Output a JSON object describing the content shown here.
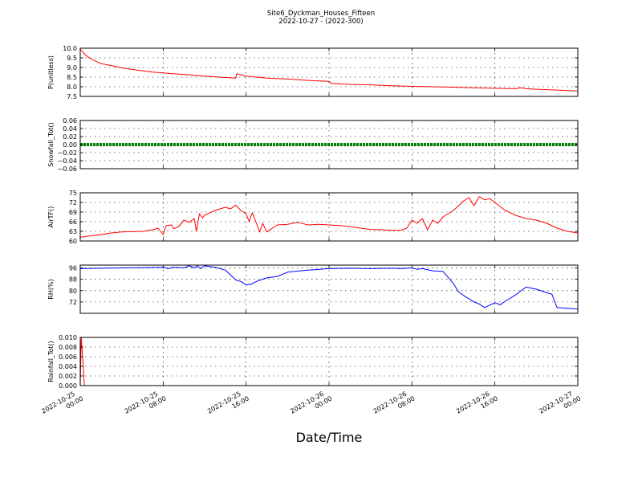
{
  "figure": {
    "title": "Site6_Dyckman_Houses_Fifteen",
    "subtitle": "2022-10-27 - (2022-300)",
    "xlabel": "Date/Time"
  },
  "chart_data": {
    "type": "line",
    "x_ticks": [
      {
        "l1": "2022-10-25",
        "l2": "00:00"
      },
      {
        "l1": "2022-10-25",
        "l2": "08:00"
      },
      {
        "l1": "2022-10-25",
        "l2": "16:00"
      },
      {
        "l1": "2022-10-26",
        "l2": "00:00"
      },
      {
        "l1": "2022-10-26",
        "l2": "08:00"
      },
      {
        "l1": "2022-10-26",
        "l2": "16:00"
      },
      {
        "l1": "2022-10-27",
        "l2": "00:00"
      }
    ],
    "x_range_hours": [
      0,
      48
    ],
    "grid": true,
    "panels": [
      {
        "id": "p",
        "ylabel": "P(unitless)",
        "color": "#ff0000",
        "ylim": [
          7.5,
          10.0
        ],
        "yticks": [
          7.5,
          8.0,
          8.5,
          9.0,
          9.5,
          10.0
        ],
        "ytick_labels": [
          "7.5",
          "8.0",
          "8.5",
          "9.0",
          "9.5",
          "10.0"
        ],
        "x": [
          0,
          0.5,
          1,
          2,
          3,
          4,
          5,
          6,
          7,
          8,
          9,
          10,
          11,
          12,
          14,
          15,
          15.1,
          15.5,
          16,
          17,
          18,
          20,
          22,
          23,
          24,
          24.2,
          26,
          28,
          30,
          32,
          34,
          36,
          38,
          40,
          42,
          42.5,
          43,
          44,
          46,
          47,
          48
        ],
        "y": [
          9.95,
          9.65,
          9.45,
          9.2,
          9.1,
          8.98,
          8.9,
          8.83,
          8.76,
          8.72,
          8.67,
          8.64,
          8.6,
          8.55,
          8.48,
          8.45,
          8.68,
          8.62,
          8.55,
          8.5,
          8.45,
          8.4,
          8.33,
          8.3,
          8.28,
          8.18,
          8.12,
          8.1,
          8.05,
          8.02,
          8.0,
          7.98,
          7.95,
          7.92,
          7.9,
          7.95,
          7.9,
          7.87,
          7.83,
          7.8,
          7.78
        ]
      },
      {
        "id": "snow",
        "ylabel": "Snowfall_Tot()",
        "color": "#008000",
        "ylim": [
          -0.06,
          0.06
        ],
        "yticks": [
          -0.06,
          -0.04,
          -0.02,
          0.0,
          0.02,
          0.04,
          0.06
        ],
        "ytick_labels": [
          "−0.06",
          "−0.04",
          "−0.02",
          "0.00",
          "0.02",
          "0.04",
          "0.06"
        ],
        "x": [
          0,
          48
        ],
        "y": [
          0.0,
          0.0
        ]
      },
      {
        "id": "air",
        "ylabel": "AirTF()",
        "color": "#ff0000",
        "ylim": [
          60,
          75
        ],
        "yticks": [
          60,
          63,
          66,
          69,
          72,
          75
        ],
        "ytick_labels": [
          "60",
          "63",
          "66",
          "69",
          "72",
          "75"
        ],
        "x": [
          0,
          1,
          2,
          3,
          4,
          5,
          6,
          7,
          7.5,
          8,
          8.3,
          8.8,
          9,
          9.5,
          10,
          10.5,
          11,
          11.2,
          11.5,
          11.8,
          12,
          12.5,
          13,
          14,
          14.5,
          15,
          15.5,
          16,
          16.3,
          16.6,
          17,
          17.3,
          17.6,
          18,
          19,
          20,
          21,
          22,
          23,
          24,
          25,
          26,
          27,
          28,
          29,
          30,
          31,
          31.5,
          32,
          32.5,
          33,
          33.5,
          34,
          34.5,
          35,
          36,
          36.5,
          37,
          37.5,
          38,
          38.5,
          39,
          39.5,
          40,
          41,
          42,
          43,
          44,
          45,
          46,
          47,
          48
        ],
        "y": [
          61.2,
          61.6,
          62.0,
          62.5,
          62.8,
          62.9,
          63.0,
          63.5,
          64.0,
          62.0,
          64.8,
          65.0,
          63.8,
          64.5,
          66.5,
          65.8,
          67.0,
          63.0,
          68.5,
          67.2,
          68.0,
          68.8,
          69.5,
          70.5,
          70.0,
          71.2,
          69.5,
          68.5,
          66.0,
          68.8,
          65.5,
          62.8,
          65.5,
          62.8,
          65.0,
          65.2,
          65.8,
          65.0,
          65.2,
          65.0,
          64.8,
          64.5,
          64.0,
          63.6,
          63.5,
          63.3,
          63.4,
          64.0,
          66.5,
          65.5,
          67.0,
          63.5,
          66.5,
          65.5,
          67.5,
          69.5,
          71.0,
          72.5,
          73.5,
          71.0,
          73.8,
          72.8,
          73.2,
          72.0,
          69.5,
          68.0,
          67.0,
          66.5,
          65.5,
          64.0,
          63.0,
          62.5
        ]
      },
      {
        "id": "rh",
        "ylabel": "RH(%)",
        "color": "#0000ff",
        "ylim": [
          64,
          98
        ],
        "yticks": [
          72,
          80,
          88,
          96
        ],
        "ytick_labels": [
          "72",
          "80",
          "88",
          "96"
        ],
        "x": [
          0,
          2,
          4,
          6,
          8,
          8.5,
          9,
          10,
          10.5,
          11,
          11.3,
          11.6,
          12,
          12.5,
          13,
          14,
          15,
          15.5,
          16,
          16.5,
          17,
          18,
          19,
          20,
          22,
          24,
          26,
          28,
          30,
          31,
          32,
          32.5,
          33,
          34,
          35,
          36,
          36.5,
          37,
          38,
          38.5,
          39,
          40,
          40.5,
          41,
          42,
          43,
          44,
          45,
          45.5,
          46,
          47,
          48
        ],
        "y": [
          95.5,
          95.8,
          96.0,
          96.2,
          96.5,
          95.5,
          96.5,
          96.0,
          97.5,
          96.0,
          97.5,
          95.5,
          97.5,
          97.0,
          96.5,
          94.5,
          87.5,
          86.5,
          84.0,
          84.5,
          86.5,
          89.0,
          90.0,
          93.0,
          94.5,
          95.5,
          95.8,
          95.5,
          95.8,
          95.5,
          96.0,
          95.0,
          95.5,
          94.0,
          93.5,
          85.0,
          79.0,
          76.5,
          72.0,
          70.5,
          68.0,
          71.5,
          70.0,
          72.5,
          77.0,
          82.5,
          81.0,
          78.5,
          77.5,
          68.0,
          67.5,
          67.0
        ]
      },
      {
        "id": "rain",
        "ylabel": "Rainfall_Tot()",
        "color": "#ff0000",
        "ylim": [
          0.0,
          0.01
        ],
        "yticks": [
          0.0,
          0.002,
          0.004,
          0.006,
          0.008,
          0.01
        ],
        "ytick_labels": [
          "0.000",
          "0.002",
          "0.004",
          "0.006",
          "0.008",
          "0.010"
        ],
        "x": [
          0,
          0.1,
          0.4,
          48
        ],
        "y": [
          0.0,
          0.01,
          0.0,
          0.0
        ]
      }
    ]
  }
}
